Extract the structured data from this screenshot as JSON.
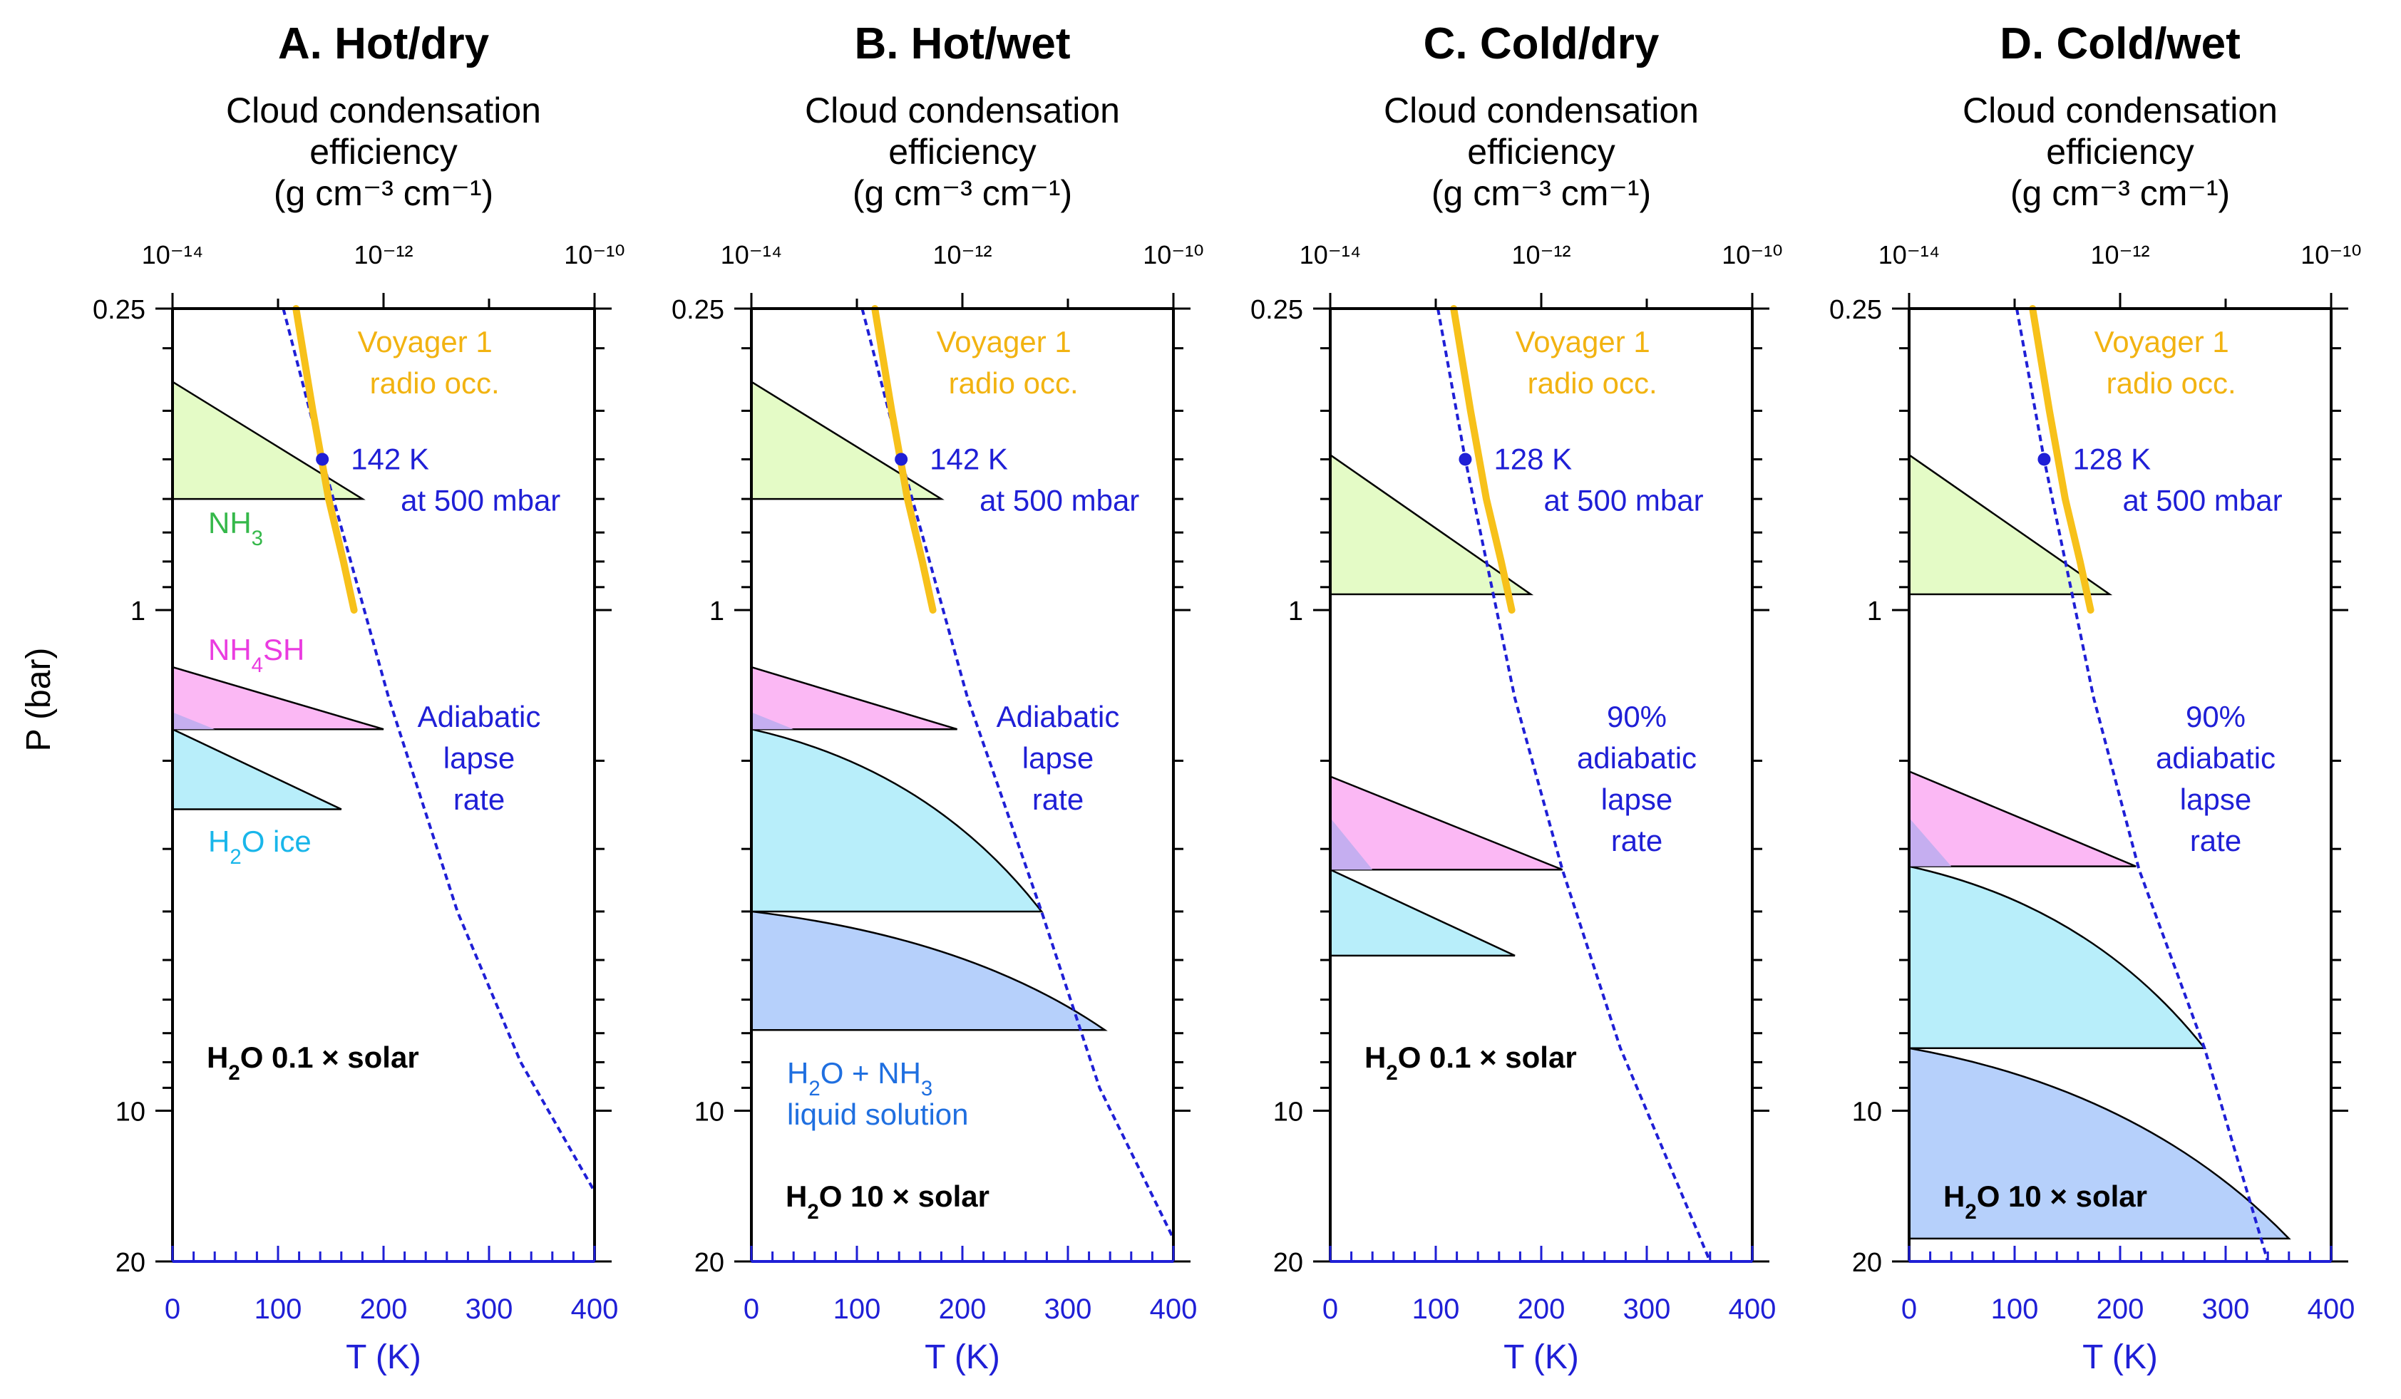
{
  "colors": {
    "adiabat": "#1f1fd6",
    "voyager": "#f7c11a",
    "nh3": "#e4fbc6",
    "nh4sh": "#fbb8f4",
    "h2o_ice": "#b8eefa",
    "solution": "#b6d0fb",
    "overlap": "#c5aef0",
    "nh3_text": "#35b84a",
    "nh4sh_text": "#ea3ce0",
    "ice_text": "#19b6ea",
    "solution_text": "#1f6fe0",
    "voyager_text": "#f2b311"
  },
  "chart_data": [
    {
      "type": "line",
      "title": "A. Hot/dry",
      "top_axis_title": [
        "Cloud condensation",
        "efficiency",
        "(g cm⁻³ cm⁻¹)"
      ],
      "top_axis": {
        "scale": "log",
        "range": [
          "1e-14",
          "1e-10"
        ],
        "ticks": [
          "10⁻¹⁴",
          "10⁻¹²",
          "10⁻¹⁰"
        ]
      },
      "xlabel": "T (K)",
      "ylabel": "P (bar)",
      "xlim": [
        0,
        400
      ],
      "xticks": [
        "0",
        "100",
        "200",
        "300",
        "400"
      ],
      "ylim": [
        20,
        0.25
      ],
      "yscale": "log",
      "yticks": [
        "0.25",
        "1",
        "10",
        "20"
      ],
      "adiabat": {
        "points": [
          [
            105,
            0.25
          ],
          [
            142,
            0.5
          ],
          [
            205,
            1.5
          ],
          [
            270,
            4
          ],
          [
            330,
            8
          ],
          [
            400,
            14.5
          ]
        ]
      },
      "adiabat_label": [
        "Adiabatic",
        "lapse",
        "rate"
      ],
      "voyager": {
        "label": [
          "Voyager 1",
          "radio occ."
        ],
        "points": [
          [
            117,
            0.25
          ],
          [
            133,
            0.4
          ],
          [
            148,
            0.6
          ],
          [
            162,
            0.8
          ],
          [
            172,
            1.0
          ]
        ]
      },
      "reference_point": {
        "T": 142,
        "P": 0.5,
        "label": [
          "142 K",
          "at 500 mbar"
        ]
      },
      "clouds": [
        {
          "id": "nh3",
          "label": "NH3",
          "top_p": 0.35,
          "base_p": 0.6,
          "base_x": 180,
          "top_x": 0
        },
        {
          "id": "nh4sh",
          "label": "NH4SH",
          "top_p": 1.3,
          "base_p": 1.73,
          "base_x": 200,
          "top_x": 0
        },
        {
          "id": "h2o_ice",
          "label": "H2O ice",
          "top_p": 1.73,
          "base_p": 2.5,
          "base_x": 160,
          "top_x": 0
        }
      ],
      "overlap": {
        "top_p": 1.6,
        "base_p": 1.73,
        "x": 40
      },
      "composition": "× solar",
      "composition_value": "0.1",
      "composition_pos": "lower-left"
    },
    {
      "type": "line",
      "title": "B. Hot/wet",
      "top_axis_title": [
        "Cloud condensation",
        "efficiency",
        "(g cm⁻³ cm⁻¹)"
      ],
      "top_axis": {
        "scale": "log",
        "range": [
          "1e-14",
          "1e-10"
        ],
        "ticks": [
          "10⁻¹⁴",
          "10⁻¹²",
          "10⁻¹⁰"
        ]
      },
      "xlabel": "T (K)",
      "ylabel": "",
      "xlim": [
        0,
        400
      ],
      "xticks": [
        "0",
        "100",
        "200",
        "300",
        "400"
      ],
      "ylim": [
        20,
        0.25
      ],
      "yscale": "log",
      "yticks": [
        "0.25",
        "1",
        "10",
        "20"
      ],
      "adiabat": {
        "points": [
          [
            105,
            0.25
          ],
          [
            142,
            0.5
          ],
          [
            205,
            1.5
          ],
          [
            275,
            4
          ],
          [
            330,
            9
          ],
          [
            400,
            18
          ]
        ]
      },
      "adiabat_label": [
        "Adiabatic",
        "lapse",
        "rate"
      ],
      "voyager": {
        "label": [
          "Voyager 1",
          "radio occ."
        ],
        "points": [
          [
            117,
            0.25
          ],
          [
            133,
            0.4
          ],
          [
            148,
            0.6
          ],
          [
            162,
            0.8
          ],
          [
            172,
            1.0
          ]
        ]
      },
      "reference_point": {
        "T": 142,
        "P": 0.5,
        "label": [
          "142 K",
          "at 500 mbar"
        ]
      },
      "clouds": [
        {
          "id": "nh3",
          "label": "",
          "top_p": 0.35,
          "base_p": 0.6,
          "base_x": 180,
          "top_x": 0
        },
        {
          "id": "nh4sh",
          "label": "",
          "top_p": 1.3,
          "base_p": 1.73,
          "base_x": 195,
          "top_x": 0
        },
        {
          "id": "h2o_ice",
          "label": "",
          "top_p": 1.73,
          "base_p": 4.0,
          "base_x": 275,
          "top_x": 0
        },
        {
          "id": "solution",
          "label": "H2O + NH3 liquid solution",
          "top_p": 4.0,
          "base_p": 6.9,
          "base_x": 335,
          "top_x": 0
        }
      ],
      "overlap": {
        "top_p": 1.6,
        "base_p": 1.73,
        "x": 40
      },
      "composition": "× solar",
      "composition_value": "10",
      "composition_pos": "bottom"
    },
    {
      "type": "line",
      "title": "C. Cold/dry",
      "top_axis_title": [
        "Cloud condensation",
        "efficiency",
        "(g cm⁻³ cm⁻¹)"
      ],
      "top_axis": {
        "scale": "log",
        "range": [
          "1e-14",
          "1e-10"
        ],
        "ticks": [
          "10⁻¹⁴",
          "10⁻¹²",
          "10⁻¹⁰"
        ]
      },
      "xlabel": "T (K)",
      "ylabel": "",
      "xlim": [
        0,
        400
      ],
      "xticks": [
        "0",
        "100",
        "200",
        "300",
        "400"
      ],
      "ylim": [
        20,
        0.25
      ],
      "yscale": "log",
      "yticks": [
        "0.25",
        "1",
        "10",
        "20"
      ],
      "adiabat": {
        "points": [
          [
            102,
            0.25
          ],
          [
            128,
            0.5
          ],
          [
            175,
            1.5
          ],
          [
            220,
            3.3
          ],
          [
            275,
            7.5
          ],
          [
            360,
            20
          ]
        ]
      },
      "adiabat_label": [
        "90%",
        "adiabatic",
        "lapse",
        "rate"
      ],
      "voyager": {
        "label": [
          "Voyager 1",
          "radio occ."
        ],
        "points": [
          [
            117,
            0.25
          ],
          [
            133,
            0.4
          ],
          [
            148,
            0.6
          ],
          [
            162,
            0.8
          ],
          [
            172,
            1.0
          ]
        ]
      },
      "reference_point": {
        "T": 128,
        "P": 0.5,
        "label": [
          "128 K",
          "at 500 mbar"
        ]
      },
      "clouds": [
        {
          "id": "nh3",
          "label": "",
          "top_p": 0.49,
          "base_p": 0.93,
          "base_x": 190,
          "top_x": 0
        },
        {
          "id": "nh4sh",
          "label": "",
          "top_p": 2.15,
          "base_p": 3.3,
          "base_x": 220,
          "top_x": 0
        },
        {
          "id": "h2o_ice",
          "label": "",
          "top_p": 3.3,
          "base_p": 4.9,
          "base_x": 175,
          "top_x": 0
        }
      ],
      "overlap": {
        "top_p": 2.6,
        "base_p": 3.3,
        "x": 40
      },
      "composition": "× solar",
      "composition_value": "0.1",
      "composition_pos": "lower-left"
    },
    {
      "type": "line",
      "title": "D. Cold/wet",
      "top_axis_title": [
        "Cloud condensation",
        "efficiency",
        "(g cm⁻³ cm⁻¹)"
      ],
      "top_axis": {
        "scale": "log",
        "range": [
          "1e-14",
          "1e-10"
        ],
        "ticks": [
          "10⁻¹⁴",
          "10⁻¹²",
          "10⁻¹⁰"
        ]
      },
      "xlabel": "T (K)",
      "ylabel": "",
      "xlim": [
        0,
        400
      ],
      "xticks": [
        "0",
        "100",
        "200",
        "300",
        "400"
      ],
      "ylim": [
        20,
        0.25
      ],
      "yscale": "log",
      "yticks": [
        "0.25",
        "1",
        "10",
        "20"
      ],
      "adiabat": {
        "points": [
          [
            102,
            0.25
          ],
          [
            128,
            0.5
          ],
          [
            175,
            1.5
          ],
          [
            218,
            3.3
          ],
          [
            280,
            7.5
          ],
          [
            340,
            20
          ]
        ]
      },
      "adiabat_label": [
        "90%",
        "adiabatic",
        "lapse",
        "rate"
      ],
      "voyager": {
        "label": [
          "Voyager 1",
          "radio occ."
        ],
        "points": [
          [
            117,
            0.25
          ],
          [
            133,
            0.4
          ],
          [
            148,
            0.6
          ],
          [
            162,
            0.8
          ],
          [
            172,
            1.0
          ]
        ]
      },
      "reference_point": {
        "T": 128,
        "P": 0.5,
        "label": [
          "128 K",
          "at 500 mbar"
        ]
      },
      "clouds": [
        {
          "id": "nh3",
          "label": "",
          "top_p": 0.49,
          "base_p": 0.93,
          "base_x": 190,
          "top_x": 0
        },
        {
          "id": "nh4sh",
          "label": "",
          "top_p": 2.1,
          "base_p": 3.25,
          "base_x": 215,
          "top_x": 0
        },
        {
          "id": "h2o_ice",
          "label": "",
          "top_p": 3.25,
          "base_p": 7.5,
          "base_x": 280,
          "top_x": 0
        },
        {
          "id": "solution",
          "label": "",
          "top_p": 7.5,
          "base_p": 18.0,
          "base_x": 360,
          "top_x": 0
        }
      ],
      "overlap": {
        "top_p": 2.6,
        "base_p": 3.25,
        "x": 40
      },
      "composition": "× solar",
      "composition_value": "10",
      "composition_pos": "bottom"
    }
  ]
}
